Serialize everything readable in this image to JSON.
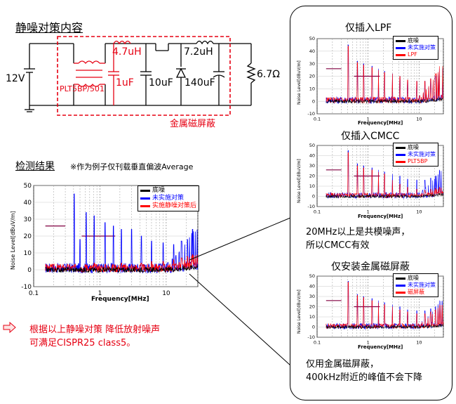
{
  "title": "静噪对策内容",
  "circuit": {
    "voltage_source": "12V",
    "inductor_1": "4.7uH",
    "inductor_2": "7.2uH",
    "cap_1": "1uF",
    "cap_2": "10uF",
    "cap_3": "140uF",
    "load": "6.7Ω",
    "cmc_part": "PLT5BP/501",
    "shield_label": "金属磁屏蔽"
  },
  "results": {
    "heading": "检测结果",
    "note": "※作为例子仅刊载垂直偏波Average"
  },
  "conclusion": {
    "line1": "根据以上静噪对策 降低放射噪声",
    "line2": "可满足CISPR25 class5。"
  },
  "colors": {
    "noise_floor": "#000000",
    "no_measure": "#0000ff",
    "with_measure": "#ff0000",
    "accent": "#e60012",
    "limit": "#800040"
  },
  "chart_data": [
    {
      "type": "line",
      "title": "",
      "xlabel": "Frequency[MHz]",
      "ylabel": "Noise Level[dBuV/m]",
      "x_scale": "log",
      "xlim": [
        0.15,
        30
      ],
      "ylim": [
        -10,
        50
      ],
      "yticks": [
        -10,
        0,
        10,
        20,
        30,
        40,
        50
      ],
      "xticks": [
        "0.1",
        "1",
        "10"
      ],
      "series": [
        {
          "name": "底噪",
          "color": "#000000",
          "baseline": 0
        },
        {
          "name": "未实施对策",
          "color": "#0000ff",
          "peaks": [
            [
              0.41,
              45
            ],
            [
              0.5,
              18
            ],
            [
              0.62,
              34
            ],
            [
              0.82,
              32
            ],
            [
              1.2,
              28
            ],
            [
              1.6,
              26
            ],
            [
              2.1,
              24
            ],
            [
              3.0,
              24
            ],
            [
              4.2,
              20
            ],
            [
              6,
              17
            ],
            [
              9,
              16
            ],
            [
              13,
              15
            ],
            [
              17,
              17
            ],
            [
              21,
              18
            ],
            [
              25,
              24
            ]
          ]
        },
        {
          "name": "实施静噪对策后",
          "color": "#ff0000",
          "peaks": [
            [
              0.62,
              3
            ],
            [
              0.82,
              4
            ],
            [
              1.2,
              3
            ],
            [
              1.6,
              3
            ],
            [
              2.1,
              4
            ],
            [
              3.0,
              3
            ],
            [
              4.2,
              4
            ],
            [
              6,
              5
            ],
            [
              9,
              5
            ],
            [
              13,
              6
            ],
            [
              17,
              7
            ],
            [
              21,
              8
            ],
            [
              25,
              9
            ]
          ]
        }
      ],
      "limits": [
        {
          "x": [
            0.15,
            0.3
          ],
          "y": 26
        },
        {
          "x": [
            0.53,
            1.7
          ],
          "y": 20
        }
      ]
    },
    {
      "type": "line",
      "title": "仅插入LPF",
      "xlabel": "Frequency[MHz]",
      "ylabel": "Noise Level[dBuV/m]",
      "x_scale": "log",
      "xlim": [
        0.15,
        30
      ],
      "ylim": [
        -10,
        50
      ],
      "yticks": [
        -10,
        0,
        10,
        20,
        30,
        40,
        50
      ],
      "xticks": [
        "0.1",
        "1",
        "10"
      ],
      "series": [
        {
          "name": "底噪",
          "color": "#000000",
          "baseline": 0
        },
        {
          "name": "未实施对策",
          "color": "#0000ff",
          "peaks": [
            [
              0.41,
              45
            ],
            [
              0.62,
              32
            ],
            [
              0.82,
              30
            ],
            [
              1.2,
              28
            ],
            [
              1.6,
              26
            ],
            [
              2.1,
              24
            ],
            [
              3.0,
              22
            ],
            [
              4.2,
              20
            ],
            [
              6,
              17
            ],
            [
              9,
              16
            ],
            [
              13,
              16
            ],
            [
              17,
              18
            ],
            [
              21,
              20
            ],
            [
              25,
              26
            ]
          ]
        },
        {
          "name": "LPF",
          "color": "#ff0000",
          "peaks": [
            [
              0.41,
              44
            ],
            [
              0.62,
              31
            ],
            [
              0.82,
              29
            ],
            [
              1.2,
              27
            ],
            [
              1.6,
              25
            ],
            [
              2.1,
              23
            ],
            [
              3.0,
              22
            ],
            [
              4.2,
              20
            ],
            [
              6,
              17
            ],
            [
              9,
              16
            ],
            [
              13,
              16
            ],
            [
              17,
              18
            ],
            [
              21,
              22
            ],
            [
              25,
              28
            ]
          ]
        }
      ],
      "limits": [
        {
          "x": [
            0.15,
            0.3
          ],
          "y": 26
        },
        {
          "x": [
            0.53,
            1.7
          ],
          "y": 20
        }
      ]
    },
    {
      "type": "line",
      "title": "仅插入CMCC",
      "xlabel": "Frequency[MHz]",
      "ylabel": "Noise Level[dBuV/m]",
      "x_scale": "log",
      "xlim": [
        0.15,
        30
      ],
      "ylim": [
        -10,
        50
      ],
      "yticks": [
        -10,
        0,
        10,
        20,
        30,
        40,
        50
      ],
      "xticks": [
        "0.1",
        "1",
        "10"
      ],
      "series": [
        {
          "name": "底噪",
          "color": "#000000",
          "baseline": 0
        },
        {
          "name": "未实施对策",
          "color": "#0000ff",
          "peaks": [
            [
              0.41,
              45
            ],
            [
              0.62,
              32
            ],
            [
              0.82,
              30
            ],
            [
              1.2,
              28
            ],
            [
              1.6,
              26
            ],
            [
              2.1,
              24
            ],
            [
              3.0,
              22
            ],
            [
              4.2,
              20
            ],
            [
              6,
              17
            ],
            [
              9,
              16
            ],
            [
              13,
              16
            ],
            [
              17,
              18
            ],
            [
              21,
              20
            ],
            [
              25,
              26
            ]
          ]
        },
        {
          "name": "PLT5BP",
          "color": "#ff0000",
          "peaks": [
            [
              0.41,
              43
            ],
            [
              0.62,
              30
            ],
            [
              0.82,
              28
            ],
            [
              1.2,
              26
            ],
            [
              1.6,
              24
            ],
            [
              2.1,
              22
            ],
            [
              3.0,
              16
            ],
            [
              4.2,
              12
            ],
            [
              6,
              9
            ],
            [
              9,
              7
            ],
            [
              13,
              6
            ],
            [
              17,
              7
            ],
            [
              21,
              8
            ],
            [
              25,
              9
            ]
          ]
        }
      ],
      "limits": [
        {
          "x": [
            0.15,
            0.3
          ],
          "y": 26
        },
        {
          "x": [
            0.53,
            1.7
          ],
          "y": 20
        }
      ]
    },
    {
      "type": "line",
      "title": "仅安装金属磁屏蔽",
      "xlabel": "Frequency[MHz]",
      "ylabel": "Noise Level[dBuV/m]",
      "x_scale": "log",
      "xlim": [
        0.15,
        30
      ],
      "ylim": [
        -10,
        50
      ],
      "yticks": [
        -10,
        0,
        10,
        20,
        30,
        40,
        50
      ],
      "xticks": [
        "0.1",
        "1",
        "10"
      ],
      "series": [
        {
          "name": "底噪",
          "color": "#000000",
          "baseline": 0
        },
        {
          "name": "未实施对策",
          "color": "#0000ff",
          "peaks": [
            [
              0.41,
              45
            ],
            [
              0.62,
              32
            ],
            [
              0.82,
              30
            ],
            [
              1.2,
              28
            ],
            [
              1.6,
              26
            ],
            [
              2.1,
              24
            ],
            [
              3.0,
              22
            ],
            [
              4.2,
              20
            ],
            [
              6,
              17
            ],
            [
              9,
              16
            ],
            [
              13,
              16
            ],
            [
              17,
              18
            ],
            [
              21,
              20
            ],
            [
              25,
              26
            ]
          ]
        },
        {
          "name": "磁屏蔽",
          "color": "#ff0000",
          "peaks": [
            [
              0.41,
              44
            ],
            [
              0.62,
              31
            ],
            [
              0.82,
              29
            ],
            [
              1.2,
              26
            ],
            [
              1.6,
              24
            ],
            [
              2.1,
              22
            ],
            [
              3.0,
              20
            ],
            [
              4.2,
              17
            ],
            [
              6,
              15
            ],
            [
              9,
              13
            ],
            [
              13,
              13
            ],
            [
              17,
              15
            ],
            [
              21,
              17
            ],
            [
              25,
              22
            ]
          ]
        }
      ],
      "limits": [
        {
          "x": [
            0.15,
            0.3
          ],
          "y": 26
        },
        {
          "x": [
            0.53,
            1.7
          ],
          "y": 20
        }
      ]
    }
  ],
  "panel": {
    "caption_cmcc_1": "20MHz以上是共模噪声，",
    "caption_cmcc_2": "所以CMCC有效",
    "caption_shield_1": "仅用金属磁屏蔽，",
    "caption_shield_2": "400kHz附近的峰值不会下降"
  }
}
